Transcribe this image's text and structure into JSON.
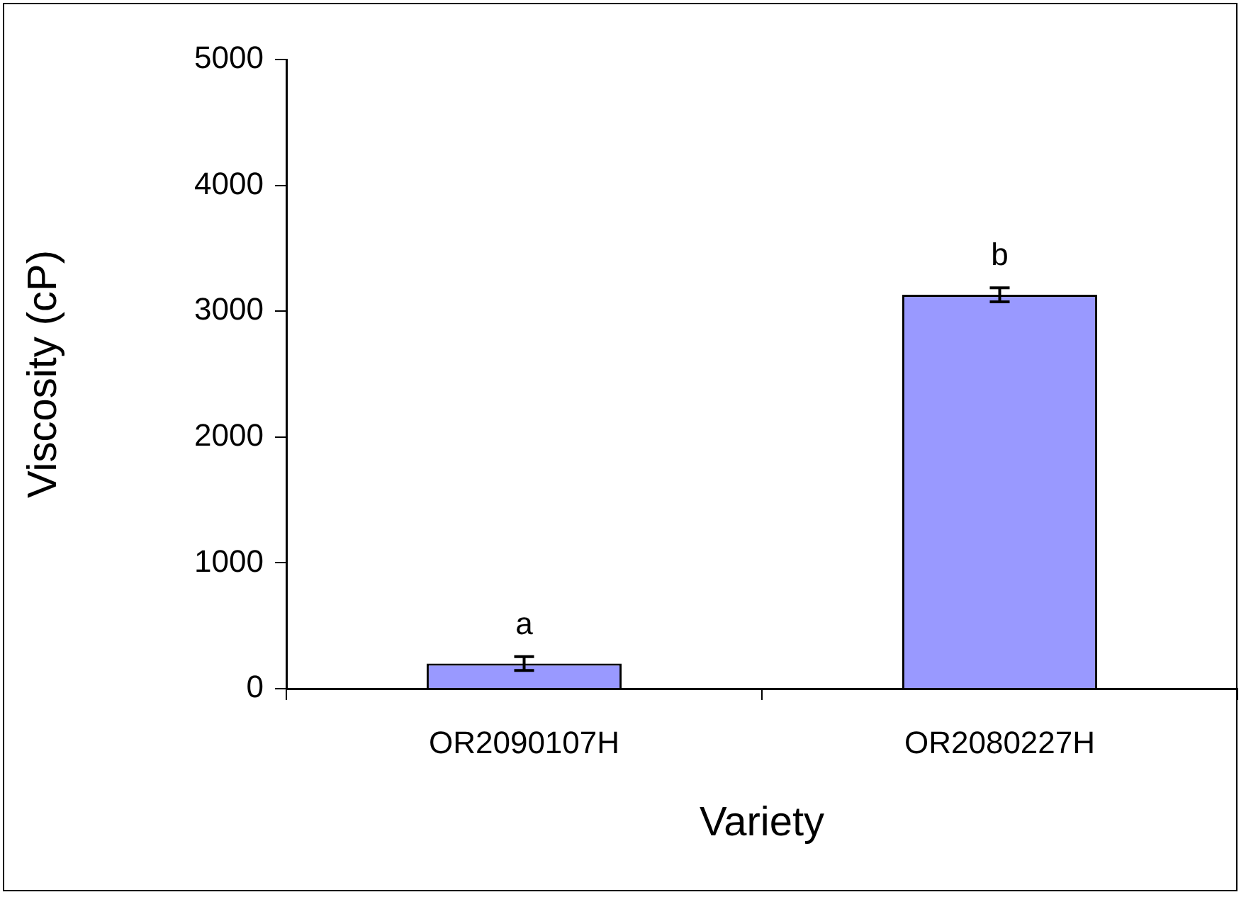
{
  "chart_data": {
    "type": "bar",
    "xlabel": "Variety",
    "ylabel": "Viscosity (cP)",
    "categories": [
      "OR2090107H",
      "OR2080227H"
    ],
    "values": [
      200,
      3130
    ],
    "errors": [
      55,
      55
    ],
    "color": "#9999ff",
    "ylim": [
      0,
      5000
    ],
    "yticks": [
      0,
      1000,
      2000,
      3000,
      4000,
      5000
    ],
    "grid": false,
    "legend": false,
    "annotations": [
      "a",
      "b"
    ]
  }
}
